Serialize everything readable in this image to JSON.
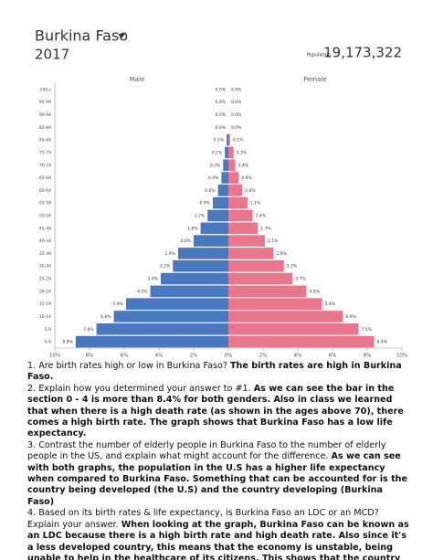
{
  "header": {
    "title": "Burkina Faso",
    "year": "2017",
    "population_label": "Population",
    "population": "19,173,322"
  },
  "chart_data": {
    "type": "pyramid",
    "title_left": "Male",
    "title_right": "Female",
    "categories": [
      "100+",
      "95-99",
      "90-94",
      "85-89",
      "80-84",
      "75-79",
      "70-74",
      "65-69",
      "60-64",
      "55-59",
      "50-54",
      "45-49",
      "40-44",
      "35-39",
      "30-34",
      "25-29",
      "20-24",
      "15-19",
      "10-14",
      "5-9",
      "0-4"
    ],
    "series": [
      {
        "name": "Male",
        "color": "#4a78bf",
        "values": [
          0.0,
          0.0,
          0.0,
          0.0,
          0.1,
          0.2,
          0.3,
          0.4,
          0.6,
          0.9,
          1.2,
          1.6,
          2.0,
          2.9,
          3.2,
          3.9,
          4.5,
          5.9,
          6.6,
          7.6,
          8.8
        ],
        "value_labels": [
          "0.0%",
          "0.0%",
          "0.0%",
          "0.0%",
          "0.1%",
          "0.2%",
          "0.3%",
          "0.4%",
          "0.6%",
          "0.9%",
          "1.2%",
          "1.6%",
          "2.0%",
          "2.9%",
          "3.2%",
          "3.9%",
          "4.5%",
          "5.9%",
          "6.6%",
          "7.6%",
          "8.8%"
        ]
      },
      {
        "name": "Female",
        "color": "#e8768c",
        "values": [
          0.0,
          0.0,
          0.0,
          0.0,
          0.1,
          0.3,
          0.4,
          0.6,
          0.8,
          1.1,
          1.4,
          1.7,
          2.1,
          2.6,
          3.2,
          3.7,
          4.5,
          5.4,
          6.6,
          7.5,
          8.4
        ],
        "value_labels": [
          "0.0%",
          "0.0%",
          "0.0%",
          "0.0%",
          "0.1%",
          "0.3%",
          "0.4%",
          "0.6%",
          "0.8%",
          "1.1%",
          "1.4%",
          "1.7%",
          "2.1%",
          "2.6%",
          "3.2%",
          "3.7%",
          "4.5%",
          "5.4%",
          "6.6%",
          "7.5%",
          "8.4%"
        ]
      }
    ],
    "xlim": [
      0,
      10
    ],
    "xticks": [
      {
        "value": 0,
        "label": "0%"
      },
      {
        "value": 2,
        "label": "2%"
      },
      {
        "value": 4,
        "label": "4%"
      },
      {
        "value": 6,
        "label": "6%"
      },
      {
        "value": 8,
        "label": "8%"
      },
      {
        "value": 10,
        "label": "10%"
      }
    ]
  },
  "questions": [
    {
      "question": "1. Are birth rates high or low in Burkina Faso?",
      "answer": "The birth rates are high in Burkina Faso."
    },
    {
      "question": "2. Explain how you determined your answer to #1.",
      "answer": "As we can see the bar in the section 0 - 4 is more than 8.4% for both genders. Also in class we learned that when there is a high death rate (as shown in the ages above 70), there comes a high birth rate. The graph shows that Burkina Faso has a low life expectancy."
    },
    {
      "question": "3. Contrast the number of elderly people in Burkina Faso to the number of elderly people in the US, and explain what might account for the difference.",
      "answer": "As we can see with both graphs, the population in the U.S has a higher life expectancy when compared to Burkina Faso. Something that can be accounted for is the country being developed (the U.S) and the country developing (Burkina Faso)"
    },
    {
      "question": "4. Based on its birth rates & life expectancy, is Burkina Faso an LDC or an MCD? Explain your answer.",
      "answer": "When looking at the graph, Burkina Faso can be known as an LDC because there is a high birth rate and high death rate. Also since it's a less developed country, this means that the economy is unstable, being unable to help in the healthcare of its citizens. This shows that the country has a low life expectancy."
    }
  ]
}
